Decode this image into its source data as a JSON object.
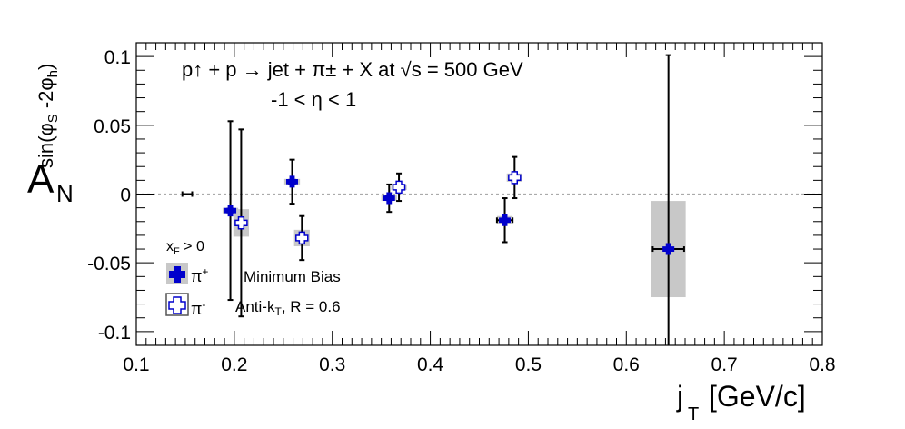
{
  "chart_data": {
    "type": "scatter",
    "title_line1": "p↑ + p → jet + π± + X at √s = 500 GeV",
    "title_line2": "-1 < η < 1",
    "xlabel": "j_T [GeV/c]",
    "ylabel": "A_N^{sin(φS-2φh)}",
    "xlim": [
      0.1,
      0.8
    ],
    "ylim": [
      -0.11,
      0.11
    ],
    "x_ticks": [
      "0.1",
      "0.2",
      "0.3",
      "0.4",
      "0.5",
      "0.6",
      "0.7",
      "0.8"
    ],
    "y_ticks": [
      "-0.1",
      "-0.05",
      "0",
      "0.05",
      "0.1"
    ],
    "zero_line": true,
    "legend_header": "x_F > 0",
    "annotation_selection": "Minimum Bias",
    "annotation_jet": "Anti-k_T, R = 0.6",
    "series": [
      {
        "name": "π+",
        "color": "#0000cc",
        "marker": "filled-cross",
        "points": [
          {
            "x": 0.152,
            "y": 0.0,
            "xerr": 0.005,
            "yerr": 0.0,
            "sys": 0.0
          },
          {
            "x": 0.196,
            "y": -0.012,
            "xerr": 0.003,
            "yerr": 0.065,
            "sys": 0.002
          },
          {
            "x": 0.259,
            "y": 0.009,
            "xerr": 0.003,
            "yerr": 0.016,
            "sys": 0.002
          },
          {
            "x": 0.358,
            "y": -0.003,
            "xerr": 0.003,
            "yerr": 0.01,
            "sys": 0.002
          },
          {
            "x": 0.476,
            "y": -0.019,
            "xerr": 0.008,
            "yerr": 0.016,
            "sys": 0.003
          },
          {
            "x": 0.643,
            "y": -0.04,
            "xerr": 0.016,
            "yerr": 0.141,
            "sys": 0.035
          }
        ]
      },
      {
        "name": "π-",
        "color": "#0000cc",
        "marker": "open-cross",
        "points": [
          {
            "x": 0.207,
            "y": -0.021,
            "xerr": 0.003,
            "yerr": 0.068,
            "sys": 0.01
          },
          {
            "x": 0.269,
            "y": -0.032,
            "xerr": 0.003,
            "yerr": 0.016,
            "sys": 0.006
          },
          {
            "x": 0.368,
            "y": 0.005,
            "xerr": 0.003,
            "yerr": 0.01,
            "sys": 0.002
          },
          {
            "x": 0.486,
            "y": 0.012,
            "xerr": 0.003,
            "yerr": 0.015,
            "sys": 0.003
          }
        ]
      }
    ]
  }
}
